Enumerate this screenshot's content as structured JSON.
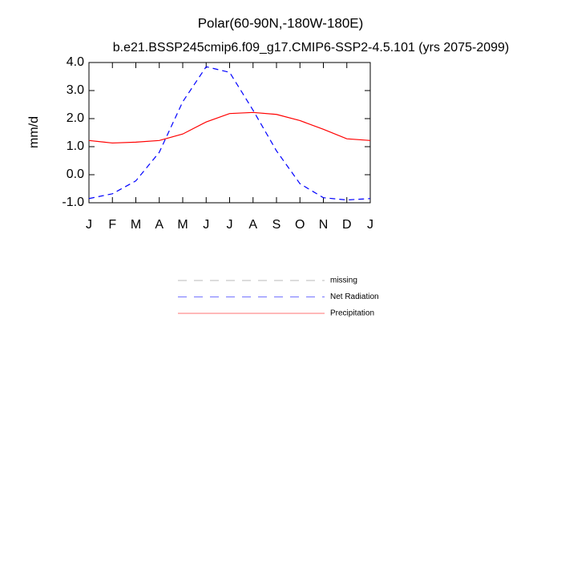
{
  "chart_data": {
    "type": "line",
    "title": "Polar(60-90N,-180W-180E)",
    "subtitle": "b.e21.BSSP245cmip6.f09_g17.CMIP6-SSP2-4.5.101 (yrs 2075-2099)",
    "y_label": "mm/d",
    "categories": [
      "J",
      "F",
      "M",
      "A",
      "M",
      "J",
      "J",
      "A",
      "S",
      "O",
      "N",
      "D",
      "J"
    ],
    "series": [
      {
        "name": "missing",
        "color": "#808080",
        "dashed": true,
        "values": [
          null,
          null,
          null,
          null,
          null,
          null,
          null,
          null,
          null,
          null,
          null,
          null,
          null
        ]
      },
      {
        "name": "Net Radiation",
        "color": "#0000ff",
        "dashed": true,
        "values": [
          -0.85,
          -0.68,
          -0.22,
          0.8,
          2.6,
          3.85,
          3.65,
          2.3,
          0.85,
          -0.32,
          -0.82,
          -0.9,
          -0.85
        ]
      },
      {
        "name": "Precipitation",
        "color": "#ff0000",
        "dashed": false,
        "values": [
          1.22,
          1.13,
          1.16,
          1.22,
          1.45,
          1.88,
          2.18,
          2.22,
          2.15,
          1.93,
          1.62,
          1.28,
          1.22
        ]
      }
    ],
    "ylim": [
      -1,
      4
    ],
    "yticks": [
      {
        "value": 4,
        "label": "4.0"
      },
      {
        "value": 3,
        "label": "3.0"
      },
      {
        "value": 2,
        "label": "2.0"
      },
      {
        "value": 1,
        "label": "1.0"
      },
      {
        "value": 0,
        "label": "0.0"
      },
      {
        "value": -1,
        "label": "-1.0"
      }
    ],
    "grid": false
  }
}
